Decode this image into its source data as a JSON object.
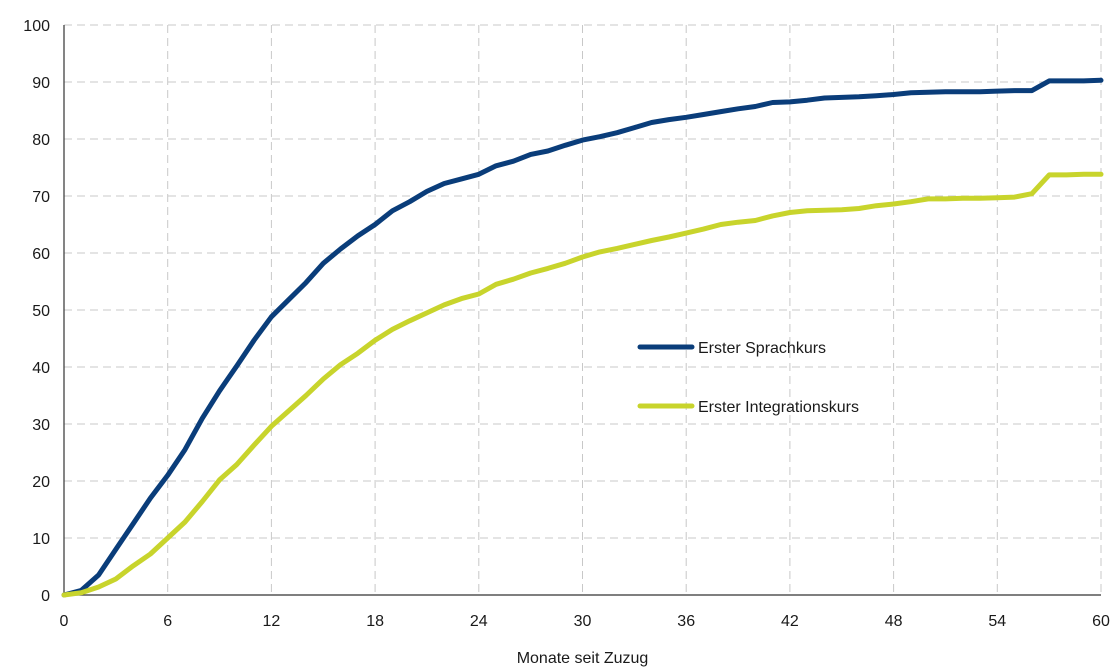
{
  "chart_data": {
    "type": "line",
    "title": "",
    "xlabel": "Monate seit Zuzug",
    "ylabel": "",
    "xlim": [
      0,
      60
    ],
    "ylim": [
      0,
      100
    ],
    "x_ticks": [
      0,
      6,
      12,
      18,
      24,
      30,
      36,
      42,
      48,
      54,
      60
    ],
    "y_ticks": [
      0,
      10,
      20,
      30,
      40,
      50,
      60,
      70,
      80,
      90,
      100
    ],
    "grid": true,
    "legend_position": "right-center",
    "series": [
      {
        "name": "Erster Sprachkurs",
        "color": "#0a3d7a",
        "x": [
          0,
          1,
          2,
          3,
          4,
          5,
          6,
          7,
          8,
          9,
          10,
          11,
          12,
          13,
          14,
          15,
          16,
          17,
          18,
          19,
          20,
          21,
          22,
          23,
          24,
          25,
          26,
          27,
          28,
          29,
          30,
          31,
          32,
          33,
          34,
          35,
          36,
          37,
          38,
          39,
          40,
          41,
          42,
          43,
          44,
          45,
          46,
          47,
          48,
          49,
          50,
          51,
          52,
          53,
          54,
          55,
          56,
          57,
          58,
          59,
          60
        ],
        "y": [
          0,
          0.8,
          3.5,
          8,
          12.5,
          17,
          21,
          25.5,
          31,
          35.8,
          40.2,
          44.7,
          48.8,
          51.8,
          54.8,
          58.2,
          60.7,
          63,
          65,
          67.4,
          69,
          70.8,
          72.2,
          73,
          73.8,
          75.3,
          76.1,
          77.3,
          77.9,
          78.9,
          79.8,
          80.4,
          81.1,
          82,
          82.9,
          83.4,
          83.8,
          84.3,
          84.8,
          85.3,
          85.7,
          86.4,
          86.5,
          86.8,
          87.2,
          87.3,
          87.4,
          87.6,
          87.8,
          88.1,
          88.2,
          88.3,
          88.3,
          88.3,
          88.4,
          88.5,
          88.5,
          90.2,
          90.2,
          90.2,
          90.3
        ]
      },
      {
        "name": "Erster Integrationskurs",
        "color": "#c8d42c",
        "x": [
          0,
          1,
          2,
          3,
          4,
          5,
          6,
          7,
          8,
          9,
          10,
          11,
          12,
          13,
          14,
          15,
          16,
          17,
          18,
          19,
          20,
          21,
          22,
          23,
          24,
          25,
          26,
          27,
          28,
          29,
          30,
          31,
          32,
          33,
          34,
          35,
          36,
          37,
          38,
          39,
          40,
          41,
          42,
          43,
          44,
          45,
          46,
          47,
          48,
          49,
          50,
          51,
          52,
          53,
          54,
          55,
          56,
          57,
          58,
          59,
          60
        ],
        "y": [
          0,
          0.4,
          1.4,
          2.8,
          5.1,
          7.2,
          10,
          12.8,
          16.4,
          20.2,
          22.9,
          26.3,
          29.6,
          32.3,
          35,
          37.9,
          40.4,
          42.4,
          44.7,
          46.6,
          48.1,
          49.5,
          50.9,
          52,
          52.8,
          54.5,
          55.4,
          56.5,
          57.3,
          58.2,
          59.3,
          60.2,
          60.8,
          61.5,
          62.2,
          62.8,
          63.5,
          64.2,
          65,
          65.4,
          65.7,
          66.5,
          67.1,
          67.4,
          67.5,
          67.6,
          67.8,
          68.3,
          68.6,
          69,
          69.5,
          69.5,
          69.6,
          69.6,
          69.7,
          69.8,
          70.4,
          73.7,
          73.7,
          73.8,
          73.8
        ]
      }
    ]
  }
}
